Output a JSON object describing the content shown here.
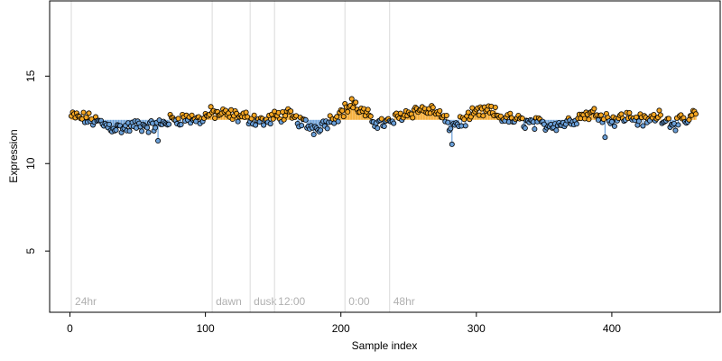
{
  "chart_data": {
    "type": "scatter",
    "xlabel": "Sample index",
    "ylabel": "Expression",
    "xlim": [
      -15,
      480
    ],
    "ylim": [
      1.5,
      19.3
    ],
    "xticks": [
      0,
      100,
      200,
      300,
      400
    ],
    "yticks": [
      5,
      10,
      15
    ],
    "baseline": 12.5,
    "grid": false,
    "colors": {
      "above": "#f5a623",
      "below": "#6a9fd8",
      "point_stroke": "#000000",
      "vline": "#d9d9d9",
      "annotation": "#b0b0b0"
    },
    "vlines": [
      {
        "x": 1,
        "label": "24hr"
      },
      {
        "x": 105,
        "label": "dawn"
      },
      {
        "x": 133,
        "label": "dusk"
      },
      {
        "x": 151,
        "label": "12:00"
      },
      {
        "x": 203,
        "label": "0:00"
      },
      {
        "x": 236,
        "label": "48hr"
      }
    ],
    "n_points": 462,
    "anchors": [
      [
        1,
        12.7
      ],
      [
        10,
        12.6
      ],
      [
        20,
        12.4
      ],
      [
        30,
        12.1
      ],
      [
        40,
        12.0
      ],
      [
        50,
        12.2
      ],
      [
        60,
        12.1
      ],
      [
        68,
        12.3
      ],
      [
        75,
        12.5
      ],
      [
        85,
        12.6
      ],
      [
        95,
        12.5
      ],
      [
        105,
        12.9
      ],
      [
        115,
        12.8
      ],
      [
        133,
        12.6
      ],
      [
        145,
        12.4
      ],
      [
        152,
        12.7
      ],
      [
        160,
        12.8
      ],
      [
        170,
        12.4
      ],
      [
        180,
        12.0
      ],
      [
        190,
        12.4
      ],
      [
        200,
        12.9
      ],
      [
        208,
        13.4
      ],
      [
        215,
        13.0
      ],
      [
        225,
        12.4
      ],
      [
        235,
        12.3
      ],
      [
        245,
        12.8
      ],
      [
        258,
        13.1
      ],
      [
        270,
        13.0
      ],
      [
        280,
        12.2
      ],
      [
        290,
        12.4
      ],
      [
        300,
        12.9
      ],
      [
        310,
        13.0
      ],
      [
        320,
        12.6
      ],
      [
        335,
        12.4
      ],
      [
        350,
        12.2
      ],
      [
        365,
        12.3
      ],
      [
        380,
        12.8
      ],
      [
        390,
        12.9
      ],
      [
        400,
        12.5
      ],
      [
        412,
        12.7
      ],
      [
        425,
        12.4
      ],
      [
        435,
        12.8
      ],
      [
        445,
        12.3
      ],
      [
        455,
        12.4
      ],
      [
        462,
        12.9
      ]
    ],
    "outliers": [
      [
        65,
        11.3
      ],
      [
        208,
        13.7
      ],
      [
        282,
        11.1
      ],
      [
        395,
        11.5
      ]
    ]
  }
}
